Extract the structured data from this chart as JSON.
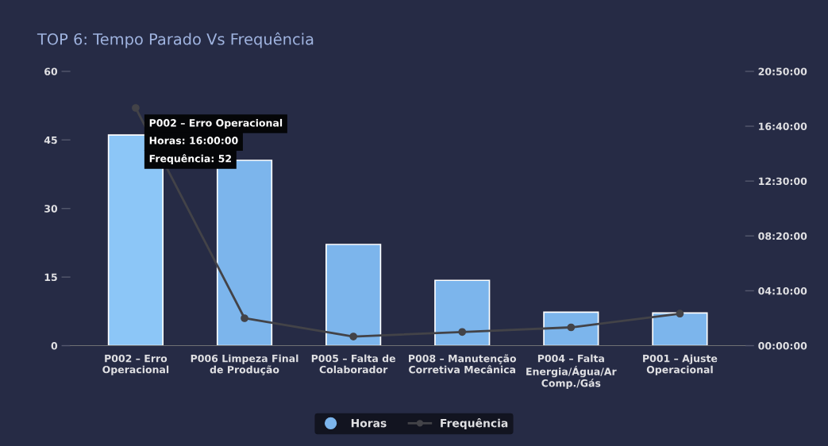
{
  "chart_data": {
    "type": "bar",
    "title": "TOP 6: Tempo Parado Vs Frequência",
    "categories": [
      "P002 – Erro Operacional",
      "P006 Limpeza Final de Produção",
      "P005 – Falta de Colaborador",
      "P008 – Manutenção Corretiva Mecânica",
      "P004 – Falta Energia/Água/Ar Comp./Gás",
      "P001 – Ajuste Operacional"
    ],
    "series": [
      {
        "name": "Horas",
        "axis": "y2",
        "colors": [
          "#8cc6f7",
          "#7cb5ec",
          "#7cb5ec",
          "#7cb5ec",
          "#7cb5ec",
          "#7cb5ec"
        ],
        "color": "#7cb5ec",
        "values": [
          16.0,
          14.08,
          7.69,
          4.96,
          2.54,
          2.48
        ]
      },
      {
        "name": "Frequência",
        "type": "line",
        "color": "#434348",
        "marker": "circle",
        "values": [
          52,
          6,
          2,
          3,
          4,
          7
        ]
      }
    ],
    "ylim": [
      0,
      60
    ],
    "yticks": [
      0,
      15,
      30,
      45,
      60
    ],
    "y2lim": [
      0,
      20.8333
    ],
    "y2ticks": [
      {
        "value": 0,
        "label": "00:00:00"
      },
      {
        "value": 4.1667,
        "label": "04:10:00"
      },
      {
        "value": 8.3333,
        "label": "08:20:00"
      },
      {
        "value": 12.5,
        "label": "12:30:00"
      },
      {
        "value": 16.6667,
        "label": "16:40:00"
      },
      {
        "value": 20.8333,
        "label": "20:50:00"
      }
    ],
    "annotations": [
      {
        "text": "P002 – Erro Operacional",
        "x": "P002 – Erro Operacional",
        "y": 52
      },
      "Horas: 16:00:00",
      "Frequência: 52"
    ],
    "grid": false,
    "legend": "bottom"
  }
}
